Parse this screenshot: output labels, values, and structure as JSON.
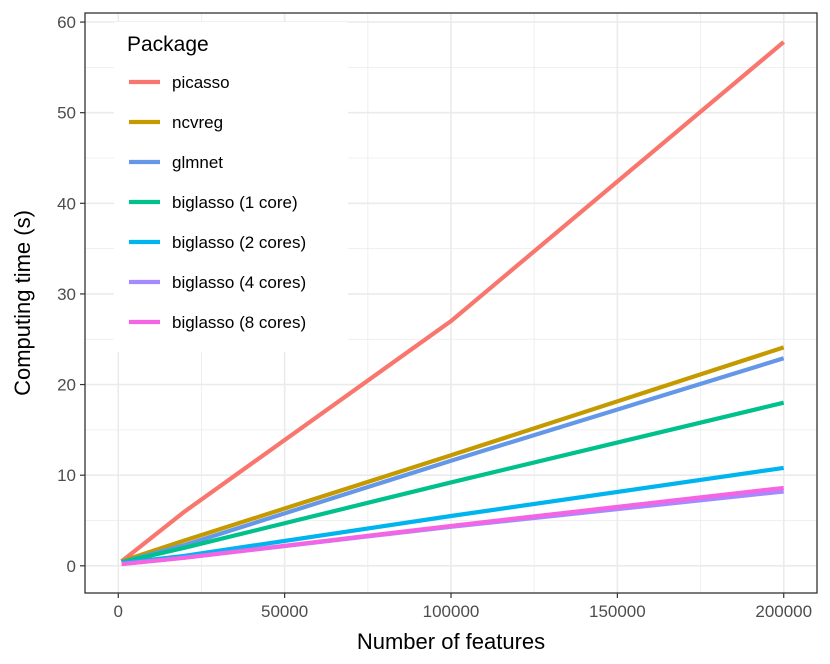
{
  "chart_data": {
    "type": "line",
    "xlabel": "Number of features",
    "ylabel": "Computing time (s)",
    "xlim": [
      -10000,
      210000
    ],
    "ylim": [
      -3,
      61
    ],
    "x_ticks": [
      0,
      50000,
      100000,
      150000,
      200000
    ],
    "x_tick_labels": [
      "0",
      "50000",
      "100000",
      "150000",
      "200000"
    ],
    "y_ticks": [
      0,
      10,
      20,
      30,
      40,
      50,
      60
    ],
    "y_tick_labels": [
      "0",
      "10",
      "20",
      "30",
      "40",
      "50",
      "60"
    ],
    "grid": true,
    "legend_title": "Package",
    "legend_position": "top-left",
    "x": [
      1000,
      20000,
      100000,
      200000
    ],
    "series": [
      {
        "name": "picasso",
        "color": "#F8766D",
        "values": [
          0.5,
          6.0,
          27.0,
          57.8
        ]
      },
      {
        "name": "ncvreg",
        "color": "#C49A00",
        "values": [
          0.5,
          2.8,
          12.2,
          24.1
        ]
      },
      {
        "name": "glmnet",
        "color": "#6497E8",
        "values": [
          0.4,
          2.3,
          11.6,
          22.9
        ]
      },
      {
        "name": "biglasso (1 core)",
        "color": "#00C08B",
        "values": [
          0.4,
          2.0,
          9.2,
          18.0
        ]
      },
      {
        "name": "biglasso (2 cores)",
        "color": "#00B4EF",
        "values": [
          0.3,
          1.1,
          5.5,
          10.8
        ]
      },
      {
        "name": "biglasso (4 cores)",
        "color": "#A58AFF",
        "values": [
          0.2,
          0.9,
          4.3,
          8.2
        ]
      },
      {
        "name": "biglasso (8 cores)",
        "color": "#F564E3",
        "values": [
          0.2,
          0.9,
          4.4,
          8.6
        ]
      }
    ]
  }
}
